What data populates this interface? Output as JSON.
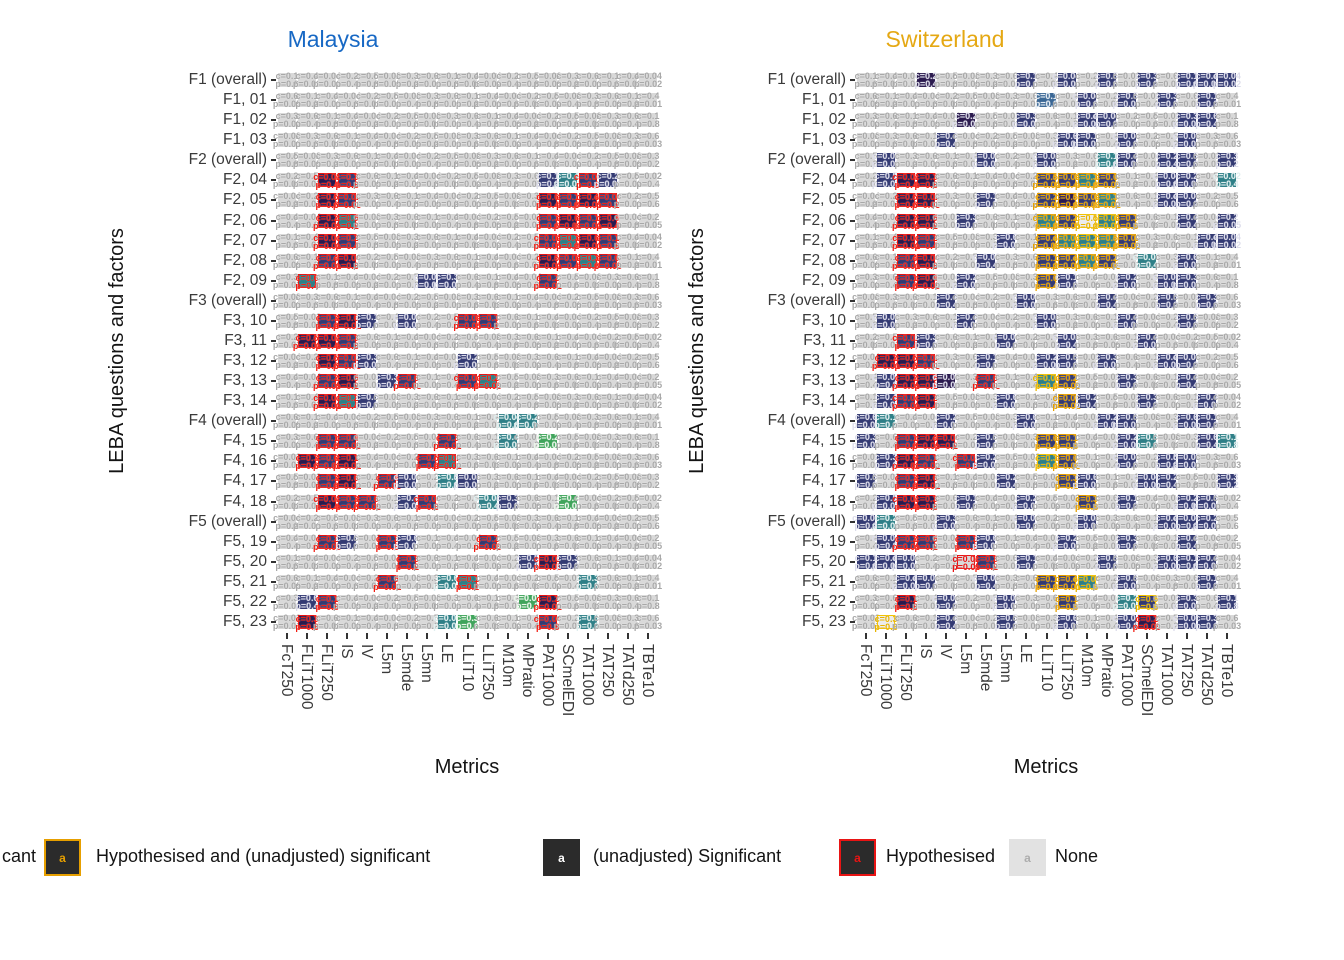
{
  "panels": [
    {
      "title": "Malaysia",
      "title_color": "#1768C4",
      "grid": [
        "...................",
        "...................",
        "...................",
        "...................",
        "...................",
        "..PN.........ntNn..",
        "..PN.........PNPN..",
        "..PT.........NPNP..",
        "..PN.........NTPN..",
        "..NP.........PNTN..",
        ".T.....nn....N.....",
        "...................",
        "..NPn.n..NN........",
        ".PPN...............",
        "..PNn....n.........",
        "..NP.nN..NT........",
        "..PTn..............",
        "...........tt......",
        "..NN....N..t.g.....",
        ".PNP...NT..........",
        "..NP.Nn.tn.........",
        "..PNN.nN..tn..g....",
        "...................",
        "..Nn.Nn...N........",
        "......N.....nPn....",
        ".....N..tT.....t...",
        ".nN.........gP.....",
        ".P......tg...N.t..."
      ]
    },
    {
      "title": "Switzerland",
      "title_color": "#E5A813",
      "grid": [
        "...p....n.n.n.n.nnn",
        ".........b.n.n.n.n.",
        ".....p..n..nn...nn.",
        "....n.....nn.n..n..",
        ".n....n..n..tn.nn.n",
        ".nPP.....1131..nn.t",
        "..PP..n..1213..nn..",
        "..PP.n...31761..n.n",
        "..PN...n.13631...nn",
        "..NP..n..1131.t.n..",
        "..NP.n...1n..n.nn..",
        "....n...n...n..n.n.",
        ".n...n...n...n..n..",
        "..Nn...n..n...n....",
        ".PPN..n..nn.n..nn..",
        ".nPPp.N..61..n..n..",
        ".nNP...n..1n..n..n.",
        "nt..n...n...nn..nn.",
        "n.NPP.n..11..nt..nt",
        ".nPN.Nn..61..n.nn..",
        "n.NP...n..1n..nn..n",
        ".nPP.n..n..1.n..nn.",
        "nt..n...n..n...nnn.",
        ".nNN.Nn...n..n..n..",
        "nnn..rN.n...n..nnn.",
        "..nn..n..116.n...n.",
        "..P.n..n..1..t5.n.n",
        ".7..n..n..n..nP.nn."
      ]
    }
  ],
  "row_labels": [
    "F1 (overall)",
    "F1, 01",
    "F1, 02",
    "F1, 03",
    "F2 (overall)",
    "F2, 04",
    "F2, 05",
    "F2, 06",
    "F2, 07",
    "F2, 08",
    "F2, 09",
    "F3 (overall)",
    "F3, 10",
    "F3, 11",
    "F3, 12",
    "F3, 13",
    "F3, 14",
    "F4 (overall)",
    "F4, 15",
    "F4, 16",
    "F4, 17",
    "F4, 18",
    "F5 (overall)",
    "F5, 19",
    "F5, 20",
    "F5, 21",
    "F5, 22",
    "F5, 23"
  ],
  "col_labels": [
    "FcT250",
    "FLiT1000",
    "FLiT250",
    "IS",
    "IV",
    "L5m",
    "L5mde",
    "L5mn",
    "LE",
    "LLiT10",
    "LLiT250",
    "M10m",
    "MPratio",
    "PAT1000",
    "SCmelEDI",
    "TAT1000",
    "TAT250",
    "TATd250",
    "TBTe10"
  ],
  "x_axis_title": "Metrics",
  "y_axis_title": "LEBA questions and factors",
  "cell_c_texts": [
    "c=0.1",
    "c=0.2",
    "c=0.3",
    "c=0.4",
    "c=0.5",
    "c=0.6",
    "c=0.04",
    "c=0.02"
  ],
  "cell_p_texts": [
    "p=0.03",
    "p=0.6",
    "p=0.01",
    "p=0.2",
    "p=0.05",
    "p=0.8",
    "p=0.4",
    "p=0.02"
  ],
  "cell_states": {
    ".": {
      "fill": "#d9d9d9",
      "border": "none",
      "text": "#a8a8a8"
    },
    "r": {
      "fill": "#d9d9d9",
      "border": "#E81414",
      "text": "#E81414"
    },
    "n": {
      "fill": "#333A73",
      "border": "none",
      "text": "#dcdcea"
    },
    "p": {
      "fill": "#2A1A4E",
      "border": "none",
      "text": "#dcdcea"
    },
    "b": {
      "fill": "#3A6795",
      "border": "none",
      "text": "#e2eaf2"
    },
    "t": {
      "fill": "#2E7F87",
      "border": "none",
      "text": "#e0efef"
    },
    "g": {
      "fill": "#3FA45B",
      "border": "none",
      "text": "#ebf7eb"
    },
    "N": {
      "fill": "#333A73",
      "border": "#E81414",
      "text": "#F21D12"
    },
    "P": {
      "fill": "#2A1A4E",
      "border": "#E81414",
      "text": "#F21D12"
    },
    "B": {
      "fill": "#3A6795",
      "border": "#E81414",
      "text": "#F21D12"
    },
    "T": {
      "fill": "#2E7F87",
      "border": "#E81414",
      "text": "#F21D12"
    },
    "G": {
      "fill": "#3FA45B",
      "border": "#E81414",
      "text": "#F21D12"
    },
    "1": {
      "fill": "#333A73",
      "border": "#E69F00",
      "text": "#E69F00"
    },
    "2": {
      "fill": "#2A1A4E",
      "border": "#E69F00",
      "text": "#E69F00"
    },
    "3": {
      "fill": "#2E7F87",
      "border": "#E69F00",
      "text": "#E8A800"
    },
    "4": {
      "fill": "#3FA45B",
      "border": "#E69F00",
      "text": "#E8A800"
    },
    "5": {
      "fill": "#333A73",
      "border": "#F3C300",
      "text": "#E8B400"
    },
    "6": {
      "fill": "#2E7F87",
      "border": "#F3C300",
      "text": "#E8B400"
    },
    "7": {
      "fill": "#ececec",
      "border": "#F3C300",
      "text": "#E8B400"
    }
  },
  "legend": {
    "clipped_text": "cant",
    "key_letter": "a",
    "items": [
      {
        "label": "Hypothesised and (unadjusted) significant",
        "key_fill": "#2b2b2b",
        "key_border": "#E69F00",
        "a_color": "#E69F00"
      },
      {
        "label": "(unadjusted) Significant",
        "key_fill": "#2b2b2b",
        "key_border": "none",
        "a_color": "#ffffff"
      },
      {
        "label": "Hypothesised",
        "key_fill": "#2b2b2b",
        "key_border": "#E81414",
        "a_color": "#E81414"
      },
      {
        "label": "None",
        "key_fill": "#e2e2e2",
        "key_border": "none",
        "a_color": "#adadad"
      }
    ]
  }
}
